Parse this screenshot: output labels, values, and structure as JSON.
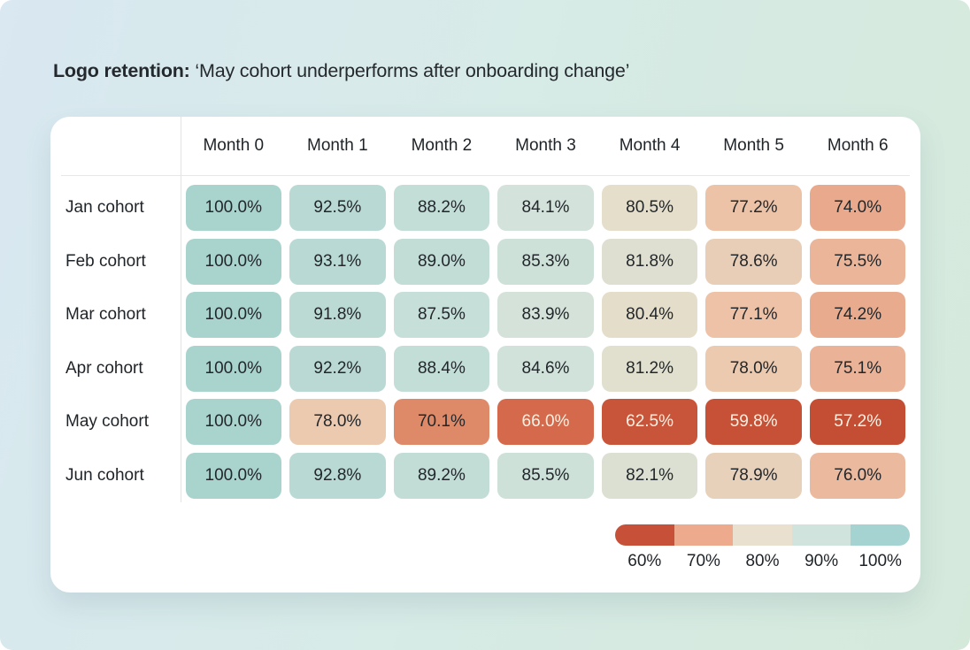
{
  "page": {
    "title_bold": "Logo retention:",
    "title_rest": " ‘May cohort underperforms after onboarding change’"
  },
  "chart_data": {
    "type": "heatmap",
    "title": "Logo retention: ‘May cohort underperforms after onboarding change’",
    "columns": [
      "Month 0",
      "Month 1",
      "Month 2",
      "Month 3",
      "Month 4",
      "Month 5",
      "Month 6"
    ],
    "rows": [
      "Jan cohort",
      "Feb cohort",
      "Mar cohort",
      "Apr cohort",
      "May cohort",
      "Jun cohort"
    ],
    "values": [
      [
        100.0,
        92.5,
        88.2,
        84.1,
        80.5,
        77.2,
        74.0
      ],
      [
        100.0,
        93.1,
        89.0,
        85.3,
        81.8,
        78.6,
        75.5
      ],
      [
        100.0,
        91.8,
        87.5,
        83.9,
        80.4,
        77.1,
        74.2
      ],
      [
        100.0,
        92.2,
        88.4,
        84.6,
        81.2,
        78.0,
        75.1
      ],
      [
        100.0,
        78.0,
        70.1,
        66.0,
        62.5,
        59.8,
        57.2
      ],
      [
        100.0,
        92.8,
        89.2,
        85.5,
        82.1,
        78.9,
        76.0
      ]
    ],
    "value_suffix": "%",
    "value_decimals": 1,
    "color_scale": {
      "stops": [
        {
          "v": 57.2,
          "color": "#c44e33"
        },
        {
          "v": 62.5,
          "color": "#c85439"
        },
        {
          "v": 66.0,
          "color": "#d4694b"
        },
        {
          "v": 70.1,
          "color": "#de8a69"
        },
        {
          "v": 74.0,
          "color": "#e8a98c"
        },
        {
          "v": 77.2,
          "color": "#edc3a8"
        },
        {
          "v": 80.5,
          "color": "#e4decb"
        },
        {
          "v": 84.1,
          "color": "#d3e2da"
        },
        {
          "v": 88.2,
          "color": "#c3ded7"
        },
        {
          "v": 92.5,
          "color": "#b9d9d4"
        },
        {
          "v": 100.0,
          "color": "#a9d4ce"
        }
      ],
      "light_text_below": 68,
      "light_text_color": "#faf1e4",
      "dark_text_color": "#22272b"
    },
    "legend": {
      "segment_colors": [
        "#c65138",
        "#edaa8c",
        "#e9e0cf",
        "#d0e3dc",
        "#a5d3d1"
      ],
      "labels": [
        "60%",
        "70%",
        "80%",
        "90%",
        "100%"
      ],
      "position": "bottom-right"
    },
    "layout_hints": {
      "grid": "off",
      "cell_shape": "rounded"
    }
  }
}
